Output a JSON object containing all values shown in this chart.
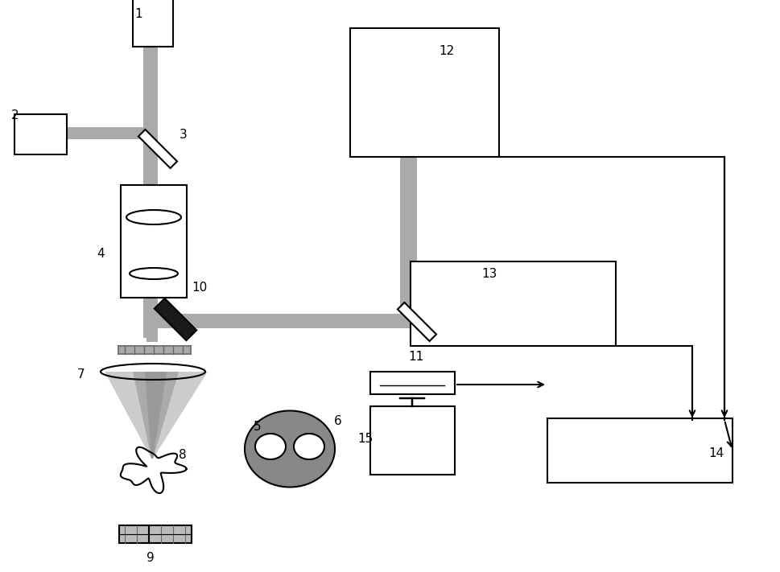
{
  "background": "#ffffff",
  "beam_color": "#aaaaaa",
  "beam_color_dark": "#888888",
  "black_color": "#1a1a1a",
  "box_facecolor": "#ffffff",
  "box_edgecolor": "#000000",
  "label_fontsize": 11,
  "line_width": 1.5
}
